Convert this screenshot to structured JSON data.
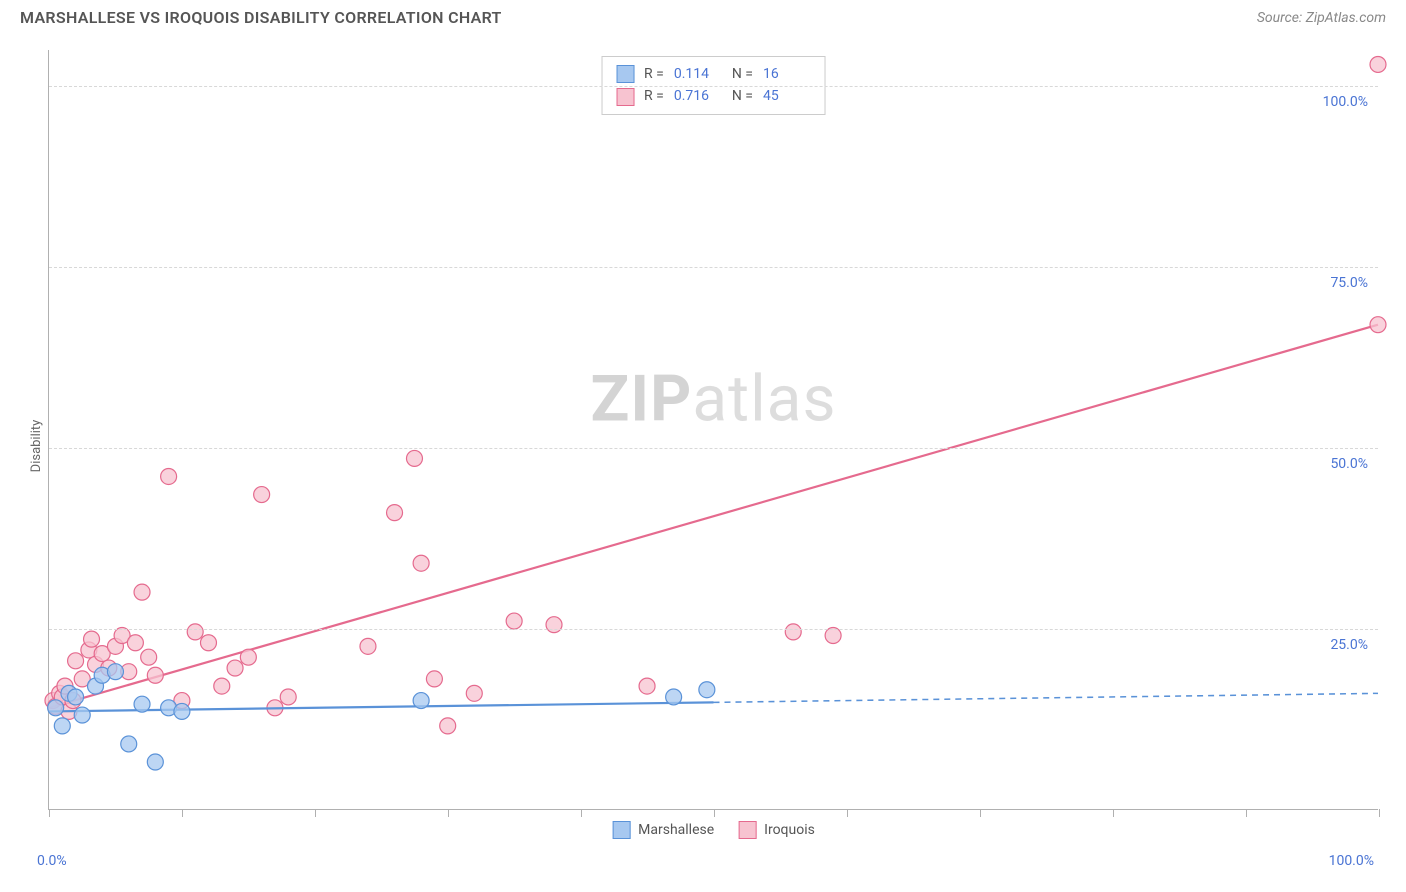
{
  "header": {
    "title": "MARSHALLESE VS IROQUOIS DISABILITY CORRELATION CHART",
    "source": "Source: ZipAtlas.com"
  },
  "chart": {
    "type": "scatter",
    "y_axis_label": "Disability",
    "background_color": "#ffffff",
    "grid_color": "#d8d8d8",
    "axis_color": "#b0b0b0",
    "tick_label_color": "#4a74d4",
    "xlim": [
      0,
      100
    ],
    "ylim": [
      0,
      105
    ],
    "x_tick_positions": [
      0,
      10,
      20,
      30,
      40,
      50,
      60,
      70,
      80,
      90,
      100
    ],
    "y_gridlines": [
      25,
      50,
      75,
      100
    ],
    "y_tick_labels": [
      "25.0%",
      "50.0%",
      "75.0%",
      "100.0%"
    ],
    "x_tick_labels": {
      "min": "0.0%",
      "max": "100.0%"
    },
    "marker_radius": 8,
    "marker_stroke_width": 1.2,
    "trend_line_width": 2.2,
    "watermark_text_bold": "ZIP",
    "watermark_text_rest": "atlas",
    "series": [
      {
        "name": "Marshallese",
        "color_fill": "#a7c8f0",
        "color_stroke": "#5a92d8",
        "r_value": "0.114",
        "n_value": "16",
        "trend": {
          "x1": 0,
          "y1": 13.5,
          "x2": 100,
          "y2": 16.0,
          "solid_until_x": 50
        },
        "points": [
          [
            0.5,
            14
          ],
          [
            1,
            11.5
          ],
          [
            1.5,
            16
          ],
          [
            2,
            15.5
          ],
          [
            2.5,
            13
          ],
          [
            3.5,
            17
          ],
          [
            4,
            18.5
          ],
          [
            5,
            19
          ],
          [
            6,
            9
          ],
          [
            7,
            14.5
          ],
          [
            8,
            6.5
          ],
          [
            9,
            14
          ],
          [
            10,
            13.5
          ],
          [
            28,
            15
          ],
          [
            47,
            15.5
          ],
          [
            49.5,
            16.5
          ]
        ]
      },
      {
        "name": "Iroquois",
        "color_fill": "#f7c3d0",
        "color_stroke": "#e56a8e",
        "r_value": "0.716",
        "n_value": "45",
        "trend": {
          "x1": 0,
          "y1": 14,
          "x2": 100,
          "y2": 67,
          "solid_until_x": 100
        },
        "points": [
          [
            0.3,
            15
          ],
          [
            0.5,
            14.2
          ],
          [
            0.8,
            16
          ],
          [
            1,
            15.5
          ],
          [
            1.2,
            17
          ],
          [
            1.5,
            13.5
          ],
          [
            1.8,
            15
          ],
          [
            2,
            20.5
          ],
          [
            2.5,
            18
          ],
          [
            3,
            22
          ],
          [
            3.2,
            23.5
          ],
          [
            3.5,
            20
          ],
          [
            4,
            21.5
          ],
          [
            4.5,
            19.5
          ],
          [
            5,
            22.5
          ],
          [
            5.5,
            24
          ],
          [
            6,
            19
          ],
          [
            6.5,
            23
          ],
          [
            7,
            30
          ],
          [
            7.5,
            21
          ],
          [
            8,
            18.5
          ],
          [
            9,
            46
          ],
          [
            10,
            15
          ],
          [
            11,
            24.5
          ],
          [
            12,
            23
          ],
          [
            13,
            17
          ],
          [
            14,
            19.5
          ],
          [
            15,
            21
          ],
          [
            16,
            43.5
          ],
          [
            17,
            14
          ],
          [
            18,
            15.5
          ],
          [
            24,
            22.5
          ],
          [
            26,
            41
          ],
          [
            27.5,
            48.5
          ],
          [
            28,
            34
          ],
          [
            29,
            18
          ],
          [
            30,
            11.5
          ],
          [
            32,
            16
          ],
          [
            35,
            26
          ],
          [
            38,
            25.5
          ],
          [
            45,
            17
          ],
          [
            56,
            24.5
          ],
          [
            59,
            24
          ],
          [
            100,
            67
          ],
          [
            100,
            103
          ]
        ]
      }
    ]
  },
  "legend_bottom": {
    "items": [
      {
        "label": "Marshallese",
        "fill": "#a7c8f0",
        "stroke": "#5a92d8"
      },
      {
        "label": "Iroquois",
        "fill": "#f7c3d0",
        "stroke": "#e56a8e"
      }
    ]
  }
}
